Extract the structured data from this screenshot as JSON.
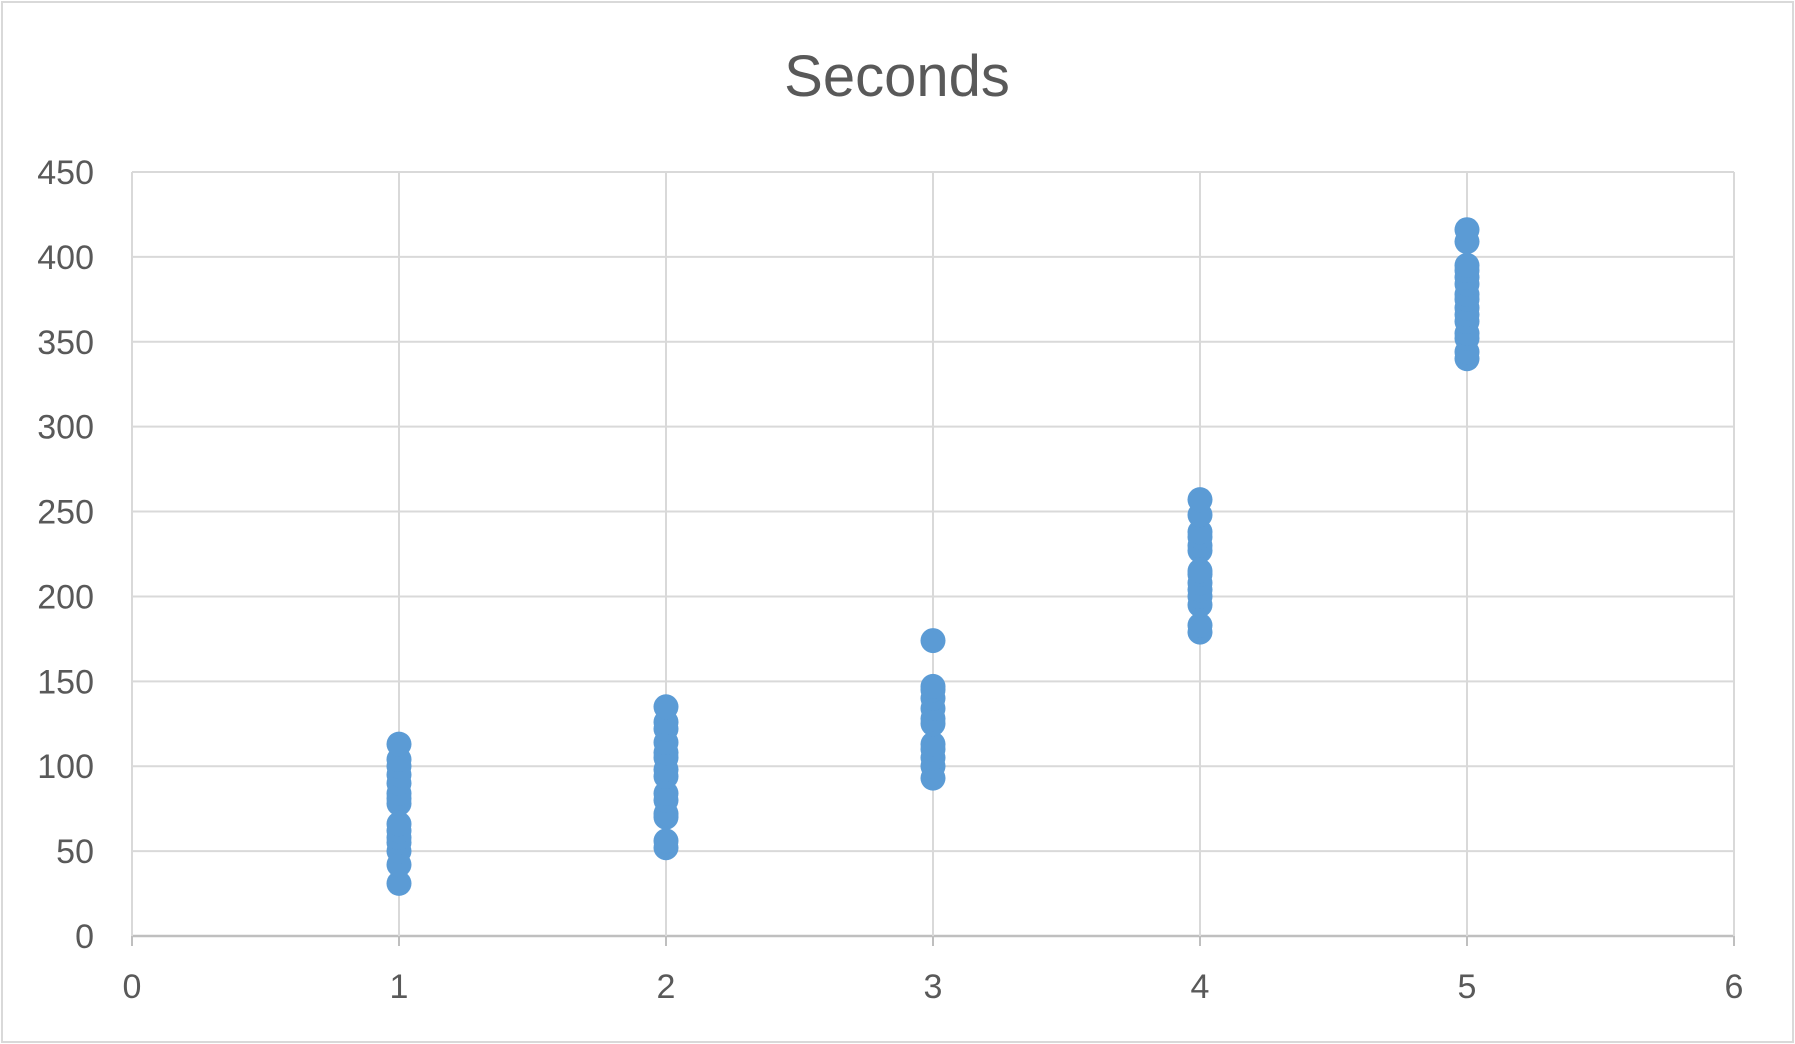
{
  "chart_data": {
    "type": "scatter",
    "title": "Seconds",
    "xlabel": "",
    "ylabel": "",
    "xlim": [
      0,
      6
    ],
    "ylim": [
      0,
      450
    ],
    "x_ticks": [
      "0",
      "1",
      "2",
      "3",
      "4",
      "5",
      "6"
    ],
    "y_ticks": [
      "0",
      "50",
      "100",
      "150",
      "200",
      "250",
      "300",
      "350",
      "400",
      "450"
    ],
    "grid": true,
    "legend": "none",
    "marker_color": "#5b9bd5",
    "series": [
      {
        "points": [
          [
            1,
            31
          ],
          [
            1,
            42
          ],
          [
            1,
            50
          ],
          [
            1,
            55
          ],
          [
            1,
            58
          ],
          [
            1,
            62
          ],
          [
            1,
            66
          ],
          [
            1,
            78
          ],
          [
            1,
            81
          ],
          [
            1,
            84
          ],
          [
            1,
            90
          ],
          [
            1,
            95
          ],
          [
            1,
            100
          ],
          [
            1,
            104
          ],
          [
            1,
            113
          ],
          [
            2,
            52
          ],
          [
            2,
            56
          ],
          [
            2,
            70
          ],
          [
            2,
            72
          ],
          [
            2,
            80
          ],
          [
            2,
            84
          ],
          [
            2,
            94
          ],
          [
            2,
            98
          ],
          [
            2,
            105
          ],
          [
            2,
            108
          ],
          [
            2,
            114
          ],
          [
            2,
            122
          ],
          [
            2,
            126
          ],
          [
            2,
            135
          ],
          [
            3,
            93
          ],
          [
            3,
            100
          ],
          [
            3,
            105
          ],
          [
            3,
            110
          ],
          [
            3,
            113
          ],
          [
            3,
            125
          ],
          [
            3,
            128
          ],
          [
            3,
            134
          ],
          [
            3,
            140
          ],
          [
            3,
            145
          ],
          [
            3,
            147
          ],
          [
            3,
            174
          ],
          [
            4,
            179
          ],
          [
            4,
            183
          ],
          [
            4,
            195
          ],
          [
            4,
            200
          ],
          [
            4,
            204
          ],
          [
            4,
            208
          ],
          [
            4,
            213
          ],
          [
            4,
            215
          ],
          [
            4,
            227
          ],
          [
            4,
            230
          ],
          [
            4,
            235
          ],
          [
            4,
            238
          ],
          [
            4,
            248
          ],
          [
            4,
            257
          ],
          [
            5,
            340
          ],
          [
            5,
            344
          ],
          [
            5,
            352
          ],
          [
            5,
            355
          ],
          [
            5,
            362
          ],
          [
            5,
            366
          ],
          [
            5,
            370
          ],
          [
            5,
            375
          ],
          [
            5,
            378
          ],
          [
            5,
            384
          ],
          [
            5,
            388
          ],
          [
            5,
            392
          ],
          [
            5,
            395
          ],
          [
            5,
            409
          ],
          [
            5,
            416
          ]
        ]
      }
    ]
  }
}
